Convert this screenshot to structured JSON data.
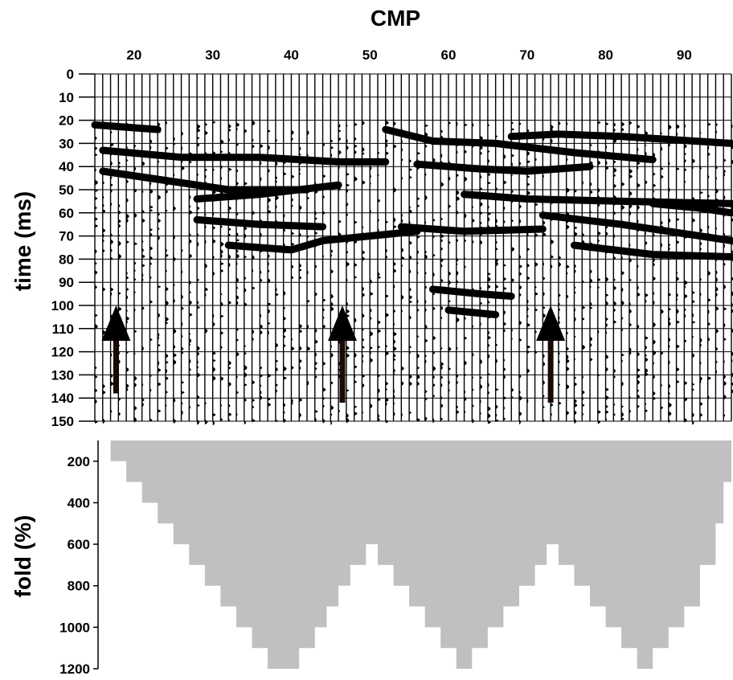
{
  "chart_data": [
    {
      "type": "wiggle-trace seismic section",
      "title": "CMP",
      "xlabel": "",
      "ylabel": "time (ms)",
      "x_ticks": [
        20,
        30,
        40,
        50,
        60,
        70,
        80,
        90
      ],
      "y_ticks": [
        0,
        10,
        20,
        30,
        40,
        50,
        60,
        70,
        80,
        90,
        100,
        110,
        120,
        130,
        140,
        150
      ],
      "xlim": [
        15,
        96
      ],
      "ylim": [
        0,
        150
      ],
      "cmp_start": 15,
      "cmp_end": 96,
      "reflectors": [
        {
          "x": [
            15,
            19,
            23
          ],
          "t": [
            22,
            23,
            24
          ]
        },
        {
          "x": [
            16,
            26,
            36,
            46,
            52
          ],
          "t": [
            33,
            36,
            36,
            38,
            38
          ]
        },
        {
          "x": [
            16,
            24,
            32,
            42
          ],
          "t": [
            42,
            46,
            50,
            50
          ]
        },
        {
          "x": [
            28,
            36,
            46
          ],
          "t": [
            54,
            52,
            48
          ]
        },
        {
          "x": [
            28,
            36,
            44
          ],
          "t": [
            63,
            65,
            66
          ]
        },
        {
          "x": [
            32,
            40,
            44
          ],
          "t": [
            74,
            76,
            72
          ]
        },
        {
          "x": [
            52,
            58,
            66,
            76,
            86
          ],
          "t": [
            24,
            29,
            30,
            34,
            37
          ]
        },
        {
          "x": [
            56,
            64,
            70,
            78
          ],
          "t": [
            39,
            41,
            42,
            40
          ]
        },
        {
          "x": [
            62,
            70,
            82,
            96
          ],
          "t": [
            52,
            54,
            55,
            56
          ]
        },
        {
          "x": [
            68,
            74,
            82,
            96
          ],
          "t": [
            27,
            26,
            27,
            30
          ]
        },
        {
          "x": [
            54,
            62,
            72
          ],
          "t": [
            66,
            68,
            67
          ]
        },
        {
          "x": [
            72,
            82,
            92,
            96
          ],
          "t": [
            61,
            65,
            70,
            72
          ]
        },
        {
          "x": [
            76,
            86,
            96
          ],
          "t": [
            74,
            78,
            79
          ]
        },
        {
          "x": [
            86,
            92,
            96
          ],
          "t": [
            56,
            58,
            60
          ]
        },
        {
          "x": [
            58,
            64,
            68
          ],
          "t": [
            93,
            95,
            96
          ]
        },
        {
          "x": [
            60,
            66
          ],
          "t": [
            102,
            104
          ]
        },
        {
          "x": [
            44,
            50,
            56
          ],
          "t": [
            72,
            70,
            68
          ]
        }
      ],
      "annotations": [
        {
          "type": "arrow",
          "x": 17.7,
          "t_tail": 138,
          "t_head": 100
        },
        {
          "type": "arrow",
          "x": 46.5,
          "t_tail": 142,
          "t_head": 100
        },
        {
          "type": "arrow",
          "x": 73,
          "t_tail": 142,
          "t_head": 100
        }
      ]
    },
    {
      "type": "area",
      "title": "",
      "xlabel": "",
      "ylabel": "fold (%)",
      "y_ticks": [
        200,
        400,
        600,
        800,
        1000,
        1200
      ],
      "ylim": [
        100,
        1200
      ],
      "y_inverted": true,
      "x": [
        15,
        96
      ],
      "fill": "#c0c0c0",
      "profile": [
        {
          "x": 15,
          "fold": 100
        },
        {
          "x": 17,
          "fold": 200
        },
        {
          "x": 19,
          "fold": 300
        },
        {
          "x": 21,
          "fold": 400
        },
        {
          "x": 23,
          "fold": 500
        },
        {
          "x": 25,
          "fold": 600
        },
        {
          "x": 27,
          "fold": 700
        },
        {
          "x": 29,
          "fold": 800
        },
        {
          "x": 31,
          "fold": 900
        },
        {
          "x": 33,
          "fold": 1000
        },
        {
          "x": 35,
          "fold": 1100
        },
        {
          "x": 37,
          "fold": 1200
        },
        {
          "x": 39,
          "fold": 1200
        },
        {
          "x": 41,
          "fold": 1100
        },
        {
          "x": 43,
          "fold": 1000
        },
        {
          "x": 44.5,
          "fold": 900
        },
        {
          "x": 46,
          "fold": 800
        },
        {
          "x": 47.5,
          "fold": 700
        },
        {
          "x": 49.5,
          "fold": 600
        },
        {
          "x": 51,
          "fold": 700
        },
        {
          "x": 53,
          "fold": 800
        },
        {
          "x": 55,
          "fold": 900
        },
        {
          "x": 57,
          "fold": 1000
        },
        {
          "x": 59,
          "fold": 1100
        },
        {
          "x": 61,
          "fold": 1200
        },
        {
          "x": 63,
          "fold": 1100
        },
        {
          "x": 65,
          "fold": 1000
        },
        {
          "x": 67,
          "fold": 900
        },
        {
          "x": 69,
          "fold": 800
        },
        {
          "x": 71,
          "fold": 700
        },
        {
          "x": 72.5,
          "fold": 600
        },
        {
          "x": 74,
          "fold": 700
        },
        {
          "x": 76,
          "fold": 800
        },
        {
          "x": 78,
          "fold": 900
        },
        {
          "x": 80,
          "fold": 1000
        },
        {
          "x": 82,
          "fold": 1100
        },
        {
          "x": 84,
          "fold": 1200
        },
        {
          "x": 86,
          "fold": 1100
        },
        {
          "x": 88,
          "fold": 1000
        },
        {
          "x": 90,
          "fold": 900
        },
        {
          "x": 92,
          "fold": 700
        },
        {
          "x": 94,
          "fold": 500
        },
        {
          "x": 95,
          "fold": 300
        },
        {
          "x": 96,
          "fold": 100
        }
      ]
    }
  ]
}
